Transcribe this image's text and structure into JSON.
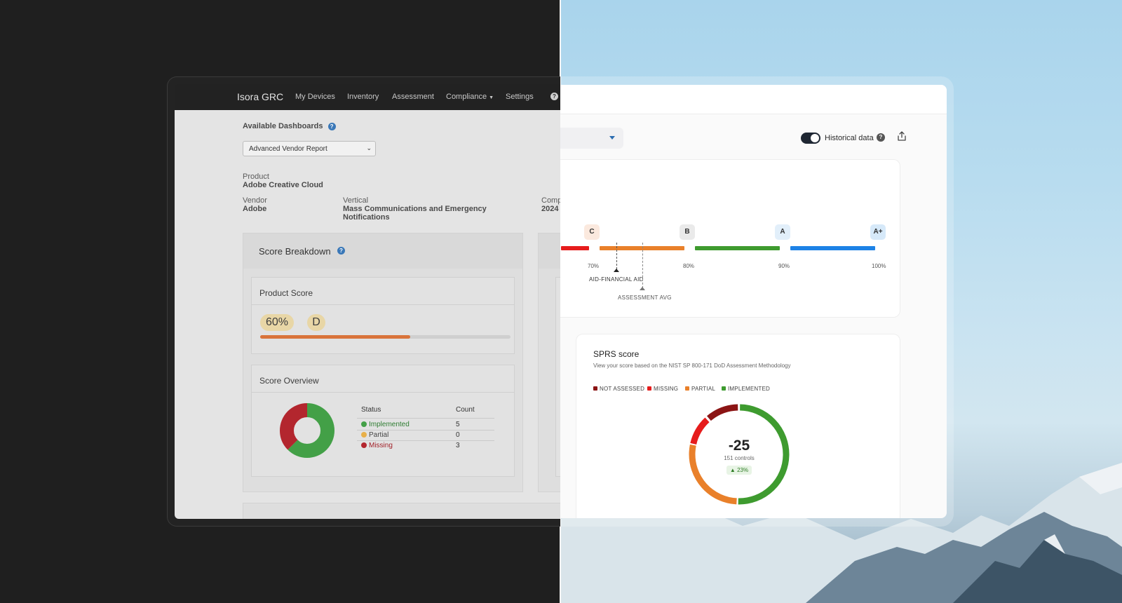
{
  "old_ui": {
    "nav": {
      "brand": "Isora GRC",
      "items": [
        "My Devices",
        "Inventory",
        "Assessment",
        "Compliance",
        "Settings"
      ],
      "help": "?"
    },
    "available_dashboards_label": "Available Dashboards",
    "dashboard_select_value": "Advanced Vendor Report",
    "product_label": "Product",
    "product_value": "Adobe Creative Cloud",
    "vendor_label": "Vendor",
    "vendor_value": "Adobe",
    "vertical_label": "Vertical",
    "vertical_value_line1": "Mass Communications and Emergency",
    "vertical_value_line2": "Notifications",
    "comp_label": "Comp",
    "comp_value": "2024",
    "score_breakdown_title": "Score Breakdown",
    "product_score_title": "Product Score",
    "product_score_percent": "60%",
    "product_score_grade": "D",
    "product_score_fraction": 0.6,
    "score_overview_title": "Score Overview",
    "table": {
      "headers": [
        "Status",
        "Count"
      ],
      "rows": [
        {
          "status": "Implemented",
          "count": "5",
          "color": "#43a047"
        },
        {
          "status": "Partial",
          "count": "0",
          "color": "#e8b04a"
        },
        {
          "status": "Missing",
          "count": "3",
          "color": "#b3262e"
        }
      ]
    },
    "donut": {
      "implemented": 5,
      "partial": 0,
      "missing": 3
    }
  },
  "new_ui": {
    "historical_label": "Historical data",
    "grades": [
      {
        "label": "C",
        "bg": "#fbe9de",
        "bar": "#e9802a"
      },
      {
        "label": "B",
        "bg": "#eaeaea",
        "bar": "#3e9b2f"
      },
      {
        "label": "A",
        "bg": "#e2effa",
        "bar": "#1d82e6"
      },
      {
        "label": "A+",
        "bg": "#d6e9f9"
      }
    ],
    "tick_labels": [
      "70%",
      "80%",
      "90%",
      "100%"
    ],
    "marker_1": "AID-FINANCIAL AID",
    "marker_2": "ASSESSMENT AVG",
    "sprs": {
      "title": "SPRS score",
      "subtitle": "View your score based on the NIST SP 800-171 DoD Assessment Methodology",
      "legend": [
        {
          "label": "NOT ASSESSED",
          "color": "#8b1414"
        },
        {
          "label": "MISSING",
          "color": "#e61c1c"
        },
        {
          "label": "PARTIAL",
          "color": "#e9802a"
        },
        {
          "label": "IMPLEMENTED",
          "color": "#3e9b2f"
        }
      ],
      "score": "-25",
      "controls": "151 controls",
      "change": "23%"
    }
  }
}
